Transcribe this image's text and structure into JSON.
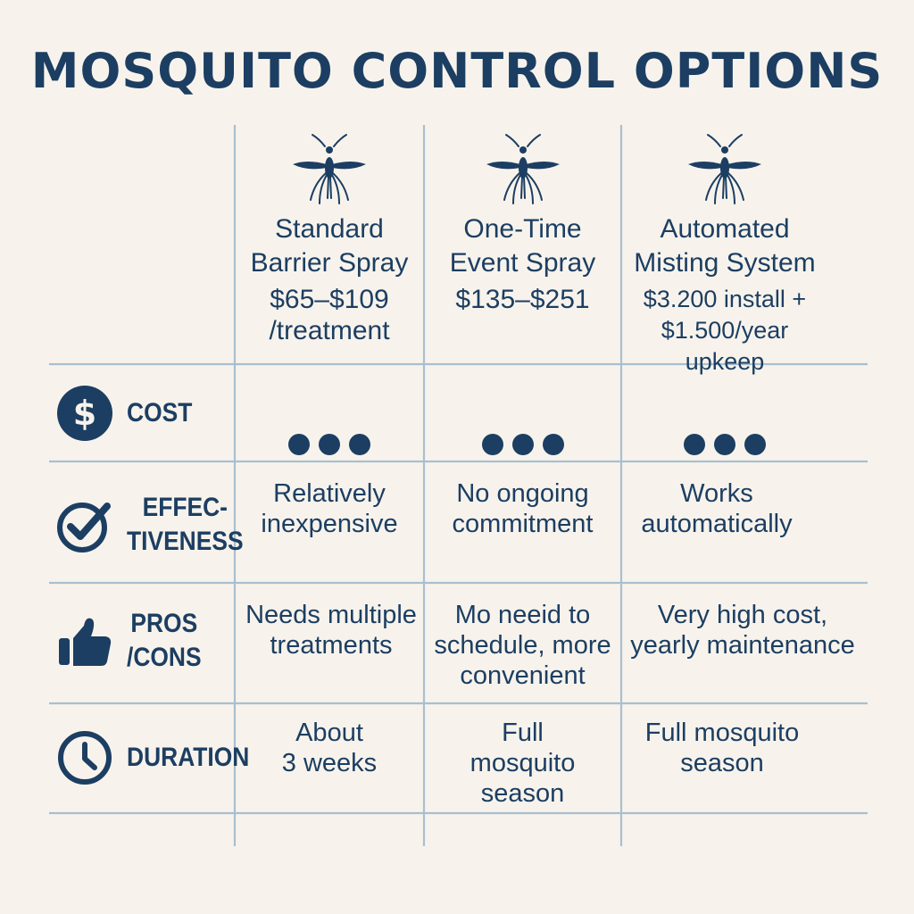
{
  "title": "MOSQUITO CONTROL OPTIONS",
  "columns": [
    {
      "name": "Standard\nBarrier Spray",
      "price": "$65–$109\n/treatment"
    },
    {
      "name": "One-Time\nEvent Spray",
      "price": "$135–$251"
    },
    {
      "name": "Automated\nMisting System",
      "price": "$3.200 install +\n$1.500/year upkeep"
    }
  ],
  "rows": {
    "cost": {
      "label": "COST",
      "icon": "dollar-icon"
    },
    "effectiveness": {
      "label": "EFFEC-\nTIVENESS",
      "icon": "check-circle-icon",
      "values": [
        "Relatively\ninexpensive",
        "No ongoing\ncommitment",
        "Works\nautomatically"
      ]
    },
    "pros_cons": {
      "label": "PROS\n/CONS",
      "icon": "thumbs-up-icon",
      "values": [
        "Needs multiple\ntreatments",
        "Mo neeid to\nschedule, more\nconvenient",
        "Very high cost,\nyearly maintenance"
      ]
    },
    "duration": {
      "label": "DURATION",
      "icon": "clock-icon",
      "values": [
        "About\n3 weeks",
        "Full\nmosquito\nseason",
        "Full mosquito\nseason"
      ]
    }
  },
  "colors": {
    "text": "#1c3e62",
    "grid": "#a9bfcf",
    "background": "#f7f3ec"
  }
}
